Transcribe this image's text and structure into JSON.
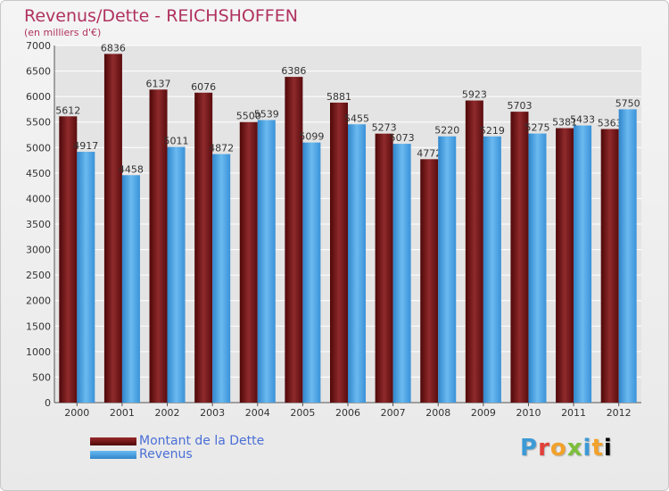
{
  "chart_data": {
    "type": "bar",
    "title": "Revenus/Dette - REICHSHOFFEN",
    "subtitle": "(en milliers d'€)",
    "categories": [
      "2000",
      "2001",
      "2002",
      "2003",
      "2004",
      "2005",
      "2006",
      "2007",
      "2008",
      "2009",
      "2010",
      "2011",
      "2012"
    ],
    "series": [
      {
        "name": "Montant de la Dette",
        "color": "#7a1a1c",
        "values": [
          5612,
          6836,
          6137,
          6076,
          5500,
          6386,
          5881,
          5273,
          4772,
          5923,
          5703,
          5381,
          5363
        ],
        "labels": [
          "5612",
          "6836",
          "6137",
          "6076",
          "5500",
          "6386",
          "5881",
          "5273",
          "4772",
          "5923",
          "5703",
          "5381",
          "5363"
        ]
      },
      {
        "name": "Revenus",
        "color": "#4aa3e6",
        "values": [
          4917,
          4458,
          5011,
          4872,
          5539,
          5099,
          5455,
          5073,
          5220,
          5219,
          5275,
          5433,
          5750
        ],
        "labels": [
          "4917",
          "4458",
          "5011",
          "4872",
          "5539",
          "5099",
          "5455",
          "5073",
          "5220",
          "5219",
          "5275",
          "5433",
          "5750"
        ]
      }
    ],
    "ylim": [
      0,
      7000
    ],
    "yticks": [
      0,
      500,
      1000,
      1500,
      2000,
      2500,
      3000,
      3500,
      4000,
      4500,
      5000,
      5500,
      6000,
      6500,
      7000
    ],
    "ytick_labels": [
      "0",
      "500",
      "1000",
      "1500",
      "2000",
      "2500",
      "3000",
      "3500",
      "4000",
      "4500",
      "5000",
      "5500",
      "6000",
      "6500",
      "7000"
    ],
    "grid": true,
    "legend_position": "bottom-left"
  },
  "logo": {
    "letters": [
      "P",
      "r",
      "o",
      "x",
      "i",
      "t",
      "i"
    ]
  }
}
